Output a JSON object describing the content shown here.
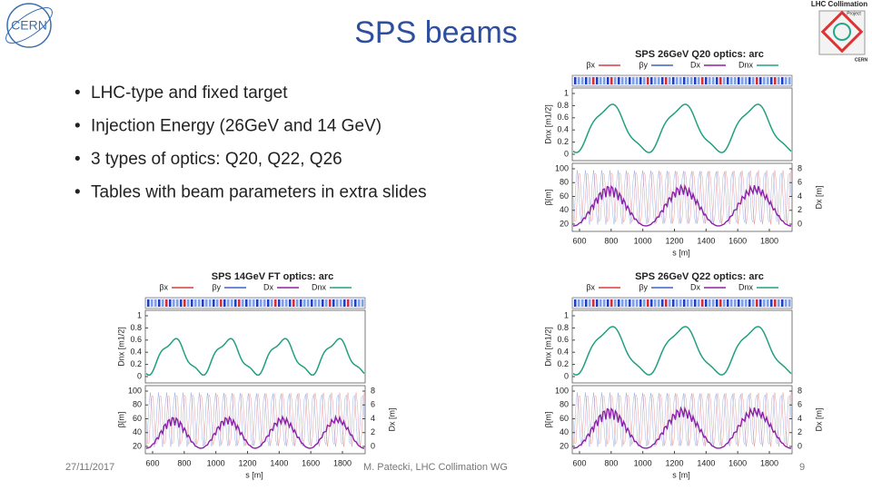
{
  "header": {
    "title": "SPS beams",
    "logo_left": "CERN",
    "logo_right": [
      "LHC Collimation",
      "Project",
      "CERN"
    ]
  },
  "bullets": [
    "LHC-type and fixed target",
    "Injection Energy (26GeV and 14 GeV)",
    "3 types of optics: Q20, Q22, Q26",
    "Tables with beam parameters in extra slides"
  ],
  "plots": [
    {
      "title": "SPS 26GeV Q20 optics: arc",
      "legend": [
        "βx",
        "βy",
        "Dx",
        "Dnx"
      ],
      "top_label": "Dnx [m1/2]",
      "top_ticks": [
        0,
        0.2,
        0.4,
        0.6,
        0.8,
        1
      ],
      "left_label": "β[m]",
      "left_ticks": [
        20,
        40,
        60,
        80,
        100
      ],
      "right_label": "Dx [m]",
      "right_ticks": [
        0,
        2,
        4,
        6,
        8
      ],
      "x_label": "s [m]",
      "x_ticks": [
        600,
        800,
        1000,
        1200,
        1400,
        1600,
        1800
      ]
    },
    {
      "title": "SPS 14GeV FT optics: arc",
      "legend": [
        "βx",
        "βy",
        "Dx",
        "Dnx"
      ],
      "top_label": "Dnx [m1/2]",
      "top_ticks": [
        0,
        0.2,
        0.4,
        0.6,
        0.8,
        1
      ],
      "left_label": "β[m]",
      "left_ticks": [
        20,
        40,
        60,
        80,
        100
      ],
      "right_label": "Dx [m]",
      "right_ticks": [
        0,
        2,
        4,
        6,
        8
      ],
      "x_label": "s [m]",
      "x_ticks": [
        600,
        800,
        1000,
        1200,
        1400,
        1600,
        1800
      ]
    },
    {
      "title": "SPS 26GeV Q22 optics: arc",
      "legend": [
        "βx",
        "βy",
        "Dx",
        "Dnx"
      ],
      "top_label": "Dnx [m1/2]",
      "top_ticks": [
        0,
        0.2,
        0.4,
        0.6,
        0.8,
        1
      ],
      "left_label": "β[m]",
      "left_ticks": [
        20,
        40,
        60,
        80,
        100
      ],
      "right_label": "Dx [m]",
      "right_ticks": [
        0,
        2,
        4,
        6,
        8
      ],
      "x_label": "s [m]",
      "x_ticks": [
        600,
        800,
        1000,
        1200,
        1400,
        1600,
        1800
      ]
    }
  ],
  "footer": {
    "date": "27/11/2017",
    "author": "M. Patecki, LHC Collimation WG",
    "page": "9"
  }
}
